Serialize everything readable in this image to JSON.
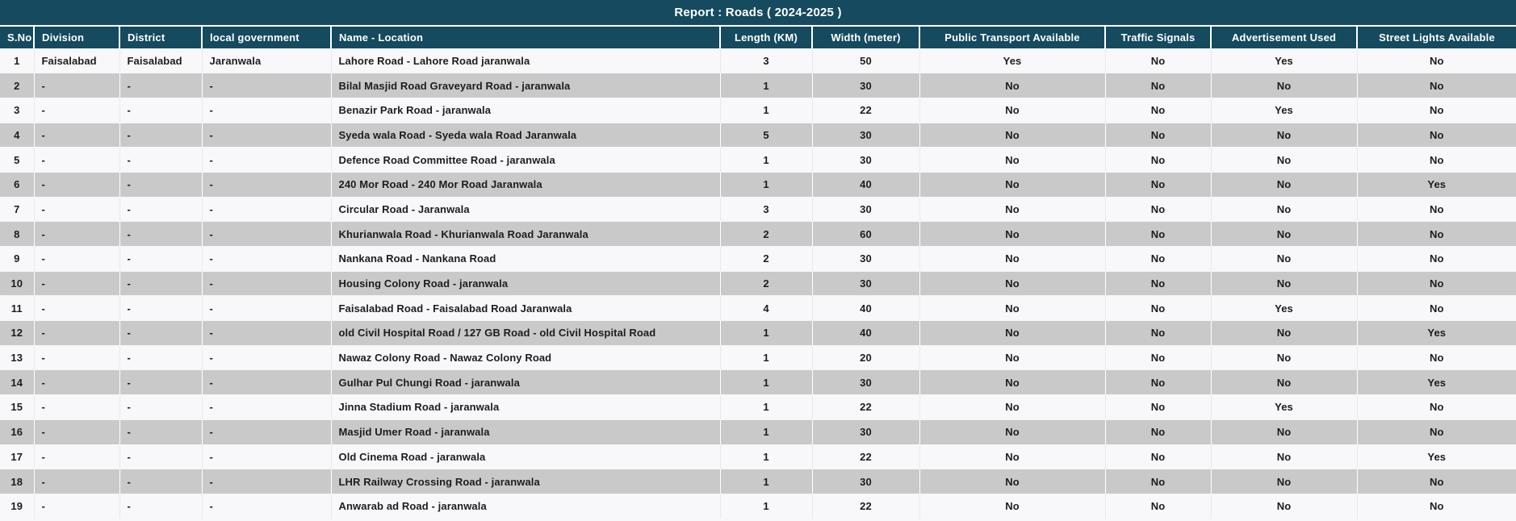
{
  "title": "Report : Roads ( 2024-2025 )",
  "colors": {
    "header_bg": "#154a5f",
    "header_text": "#ffffff",
    "row_odd_bg": "#f8f8fa",
    "row_even_bg": "#c9c9c9",
    "body_text": "#1d1d1f"
  },
  "table": {
    "columns": [
      "S.No",
      "Division",
      "District",
      "local government",
      "Name - Location",
      "Length (KM)",
      "Width (meter)",
      "Public Transport Available",
      "Traffic Signals",
      "Advertisement Used",
      "Street Lights Available"
    ],
    "rows": [
      [
        "1",
        "Faisalabad",
        "Faisalabad",
        "Jaranwala",
        "Lahore Road - Lahore Road jaranwala",
        "3",
        "50",
        "Yes",
        "No",
        "Yes",
        "No"
      ],
      [
        "2",
        "-",
        "-",
        "-",
        "Bilal Masjid Road Graveyard Road - jaranwala",
        "1",
        "30",
        "No",
        "No",
        "No",
        "No"
      ],
      [
        "3",
        "-",
        "-",
        "-",
        "Benazir Park Road - jaranwala",
        "1",
        "22",
        "No",
        "No",
        "Yes",
        "No"
      ],
      [
        "4",
        "-",
        "-",
        "-",
        "Syeda wala Road - Syeda wala Road Jaranwala",
        "5",
        "30",
        "No",
        "No",
        "No",
        "No"
      ],
      [
        "5",
        "-",
        "-",
        "-",
        "Defence Road Committee Road - jaranwala",
        "1",
        "30",
        "No",
        "No",
        "No",
        "No"
      ],
      [
        "6",
        "-",
        "-",
        "-",
        "240 Mor Road - 240 Mor Road Jaranwala",
        "1",
        "40",
        "No",
        "No",
        "No",
        "Yes"
      ],
      [
        "7",
        "-",
        "-",
        "-",
        "Circular Road - Jaranwala",
        "3",
        "30",
        "No",
        "No",
        "No",
        "No"
      ],
      [
        "8",
        "-",
        "-",
        "-",
        "Khurianwala Road - Khurianwala Road Jaranwala",
        "2",
        "60",
        "No",
        "No",
        "No",
        "No"
      ],
      [
        "9",
        "-",
        "-",
        "-",
        "Nankana Road - Nankana Road",
        "2",
        "30",
        "No",
        "No",
        "No",
        "No"
      ],
      [
        "10",
        "-",
        "-",
        "-",
        "Housing Colony Road - jaranwala",
        "2",
        "30",
        "No",
        "No",
        "No",
        "No"
      ],
      [
        "11",
        "-",
        "-",
        "-",
        "Faisalabad Road - Faisalabad Road Jaranwala",
        "4",
        "40",
        "No",
        "No",
        "Yes",
        "No"
      ],
      [
        "12",
        "-",
        "-",
        "-",
        "old Civil Hospital Road / 127 GB Road - old Civil Hospital Road",
        "1",
        "40",
        "No",
        "No",
        "No",
        "Yes"
      ],
      [
        "13",
        "-",
        "-",
        "-",
        "Nawaz Colony Road - Nawaz Colony Road",
        "1",
        "20",
        "No",
        "No",
        "No",
        "No"
      ],
      [
        "14",
        "-",
        "-",
        "-",
        "Gulhar Pul Chungi Road - jaranwala",
        "1",
        "30",
        "No",
        "No",
        "No",
        "Yes"
      ],
      [
        "15",
        "-",
        "-",
        "-",
        "Jinna Stadium Road - jaranwala",
        "1",
        "22",
        "No",
        "No",
        "Yes",
        "No"
      ],
      [
        "16",
        "-",
        "-",
        "-",
        "Masjid Umer Road - jaranwala",
        "1",
        "30",
        "No",
        "No",
        "No",
        "No"
      ],
      [
        "17",
        "-",
        "-",
        "-",
        "Old Cinema Road - jaranwala",
        "1",
        "22",
        "No",
        "No",
        "No",
        "Yes"
      ],
      [
        "18",
        "-",
        "-",
        "-",
        "LHR Railway Crossing Road - jaranwala",
        "1",
        "30",
        "No",
        "No",
        "No",
        "No"
      ],
      [
        "19",
        "-",
        "-",
        "-",
        "Anwarab ad Road - jaranwala",
        "1",
        "22",
        "No",
        "No",
        "No",
        "No"
      ]
    ]
  }
}
